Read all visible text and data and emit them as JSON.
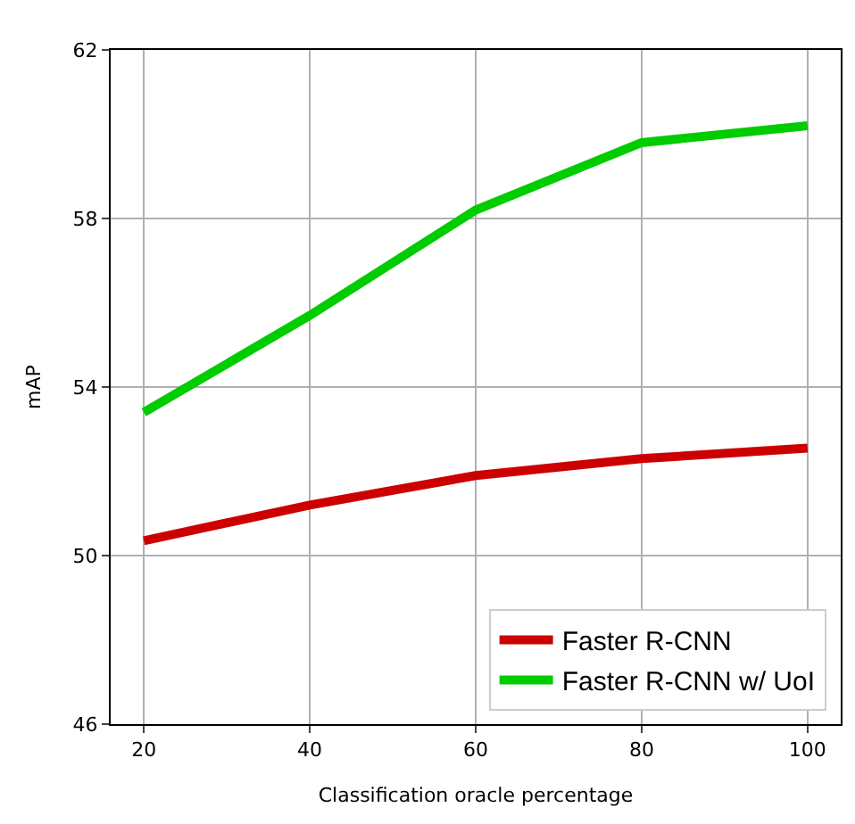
{
  "chart_data": {
    "type": "line",
    "xlabel": "Classification oracle percentage",
    "ylabel": "mAP",
    "x": [
      20,
      40,
      60,
      80,
      100
    ],
    "series": [
      {
        "name": "Faster R-CNN",
        "color": "#cc0000",
        "values": [
          50.35,
          51.2,
          51.9,
          52.3,
          52.55
        ]
      },
      {
        "name": "Faster R-CNN w/ UoI",
        "color": "#00cc00",
        "values": [
          53.4,
          55.7,
          58.2,
          59.8,
          60.2
        ]
      }
    ],
    "xlim": [
      16,
      104
    ],
    "ylim": [
      46,
      62
    ],
    "xticks": [
      20,
      40,
      60,
      80,
      100
    ],
    "yticks": [
      46,
      50,
      54,
      58,
      62
    ],
    "grid": true,
    "legend": "bottom right",
    "marker": "none",
    "line_style": "solid"
  }
}
